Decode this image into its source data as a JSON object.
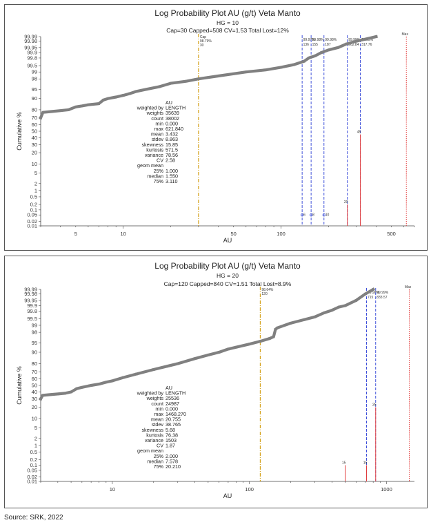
{
  "source": "Source: SRK, 2022",
  "chart_data": [
    {
      "type": "scatter",
      "title": "Log Probability Plot AU (g/t) Veta Manto",
      "subtitle1": "HG = 10",
      "subtitle2": "Cap=30 Capped=508 CV=1.53 Total Lost=12%",
      "xlabel": "AU",
      "ylabel": "Cumulative %",
      "x_scale": "log",
      "y_scale": "probability",
      "xlim": [
        3,
        700
      ],
      "x_ticks": [
        5,
        10,
        50,
        100,
        500
      ],
      "y_ticks": [
        "0.01",
        "0.02",
        "0.05",
        "0.1",
        "0.2",
        "0.5",
        "1",
        "2",
        "5",
        "10",
        "20",
        "30",
        "40",
        "50",
        "60",
        "70",
        "80",
        "90",
        "95",
        "98",
        "99",
        "99.5",
        "99.8",
        "99.9",
        "99.95",
        "99.98",
        "99.99"
      ],
      "series": [
        {
          "color": "#808080",
          "x": [
            3,
            3.1,
            3.5,
            4,
            4.5,
            5,
            5.5,
            6,
            7,
            7.5,
            8,
            9,
            10,
            11,
            12,
            14,
            17,
            20,
            25,
            30,
            40,
            50,
            60,
            80,
            100,
            120,
            140,
            150,
            155,
            165,
            180,
            200,
            230,
            260,
            300,
            340,
            400
          ],
          "y": [
            70,
            77,
            78,
            79,
            80,
            83,
            84,
            85,
            86,
            89,
            90,
            91,
            92,
            93,
            94,
            95,
            96,
            97,
            97.5,
            98,
            98.5,
            98.8,
            99,
            99.2,
            99.4,
            99.55,
            99.7,
            99.8,
            99.82,
            99.85,
            99.9,
            99.93,
            99.95,
            99.97,
            99.98,
            99.985,
            99.99
          ]
        }
      ],
      "cap_line": {
        "x": 30,
        "color": "#d4a017",
        "labels": [
          "Cap",
          "98.79%",
          "30"
        ]
      },
      "blue_lines": [
        {
          "x": 136,
          "labels": [
            "99.97%",
            "136"
          ]
        },
        {
          "x": 155,
          "labels": [
            "99.98%",
            "155"
          ]
        },
        {
          "x": 187,
          "labels": [
            "99.98%",
            "187"
          ]
        },
        {
          "x": 263,
          "labels": [
            "99.99%",
            "262.84"
          ]
        },
        {
          "x": 318,
          "labels": [
            "99.99%",
            "317.76"
          ]
        }
      ],
      "red_lines": [
        {
          "x": 263,
          "y": 0.2,
          "label": "20"
        },
        {
          "x": 318,
          "y": 45,
          "label": "45"
        },
        {
          "x": 622,
          "y": 99.99,
          "label": "Max",
          "dotted": true
        }
      ],
      "markers": [
        {
          "x": 136,
          "y": 0.05,
          "label": "6"
        },
        {
          "x": 155,
          "y": 0.05,
          "label": "8"
        },
        {
          "x": 187,
          "y": 0.05,
          "label": "10"
        }
      ],
      "stats": [
        [
          "",
          "AU"
        ],
        [
          "weighted by",
          "LENGTH"
        ],
        [
          "weights",
          "35639"
        ],
        [
          "count",
          "38002"
        ],
        [
          "min",
          "0.000"
        ],
        [
          "max",
          "621.840"
        ],
        [
          "mean",
          "3.432"
        ],
        [
          "stdev",
          "8.863"
        ],
        [
          "skewness",
          "15.85"
        ],
        [
          "kurtosis",
          "571.5"
        ],
        [
          "variance",
          "78.56"
        ],
        [
          "CV",
          "2.58"
        ],
        [
          "geom mean",
          ""
        ],
        [
          "25%",
          "1.000"
        ],
        [
          "median",
          "1.550"
        ],
        [
          "75%",
          "3.110"
        ]
      ]
    },
    {
      "type": "scatter",
      "title": "Log Probability Plot AU (g/t) Veta Manto",
      "subtitle1": "HG = 20",
      "subtitle2": "Cap=120 Capped=840 CV=1.51 Total Lost=8.9%",
      "xlabel": "AU",
      "ylabel": "Cumulative %",
      "x_scale": "log",
      "y_scale": "probability",
      "xlim": [
        3,
        1600
      ],
      "x_ticks": [
        10,
        100,
        1000
      ],
      "y_ticks": [
        "0.01",
        "0.02",
        "0.05",
        "0.1",
        "0.2",
        "0.5",
        "1",
        "2",
        "5",
        "10",
        "20",
        "30",
        "40",
        "50",
        "60",
        "70",
        "80",
        "90",
        "95",
        "98",
        "99",
        "99.5",
        "99.8",
        "99.9",
        "99.95",
        "99.98",
        "99.99"
      ],
      "series": [
        {
          "color": "#808080",
          "x": [
            3,
            3.1,
            3.5,
            4,
            4.5,
            5,
            5.5,
            6,
            7,
            8,
            9,
            10,
            12,
            15,
            20,
            25,
            30,
            40,
            50,
            60,
            70,
            80,
            100,
            120,
            140,
            150,
            155,
            160,
            200,
            250,
            300,
            350,
            400,
            450,
            500,
            600,
            700,
            800
          ],
          "y": [
            30,
            35,
            36,
            37,
            38,
            40,
            45,
            47,
            50,
            52,
            55,
            57,
            62,
            67,
            73,
            77,
            80,
            85,
            88,
            90,
            92,
            93,
            94.5,
            95.6,
            96.5,
            97,
            98.5,
            98.7,
            99.2,
            99.45,
            99.6,
            99.75,
            99.82,
            99.88,
            99.9,
            99.95,
            99.98,
            99.99
          ]
        }
      ],
      "cap_line": {
        "x": 120,
        "color": "#d4a017",
        "labels": [
          "98.64%",
          "120"
        ]
      },
      "blue_lines": [
        {
          "x": 715,
          "labels": [
            "99.98%",
            "715"
          ]
        },
        {
          "x": 834,
          "labels": [
            "99.99%",
            "833.57"
          ]
        }
      ],
      "red_lines": [
        {
          "x": 500,
          "y": 0.1,
          "label": "15"
        },
        {
          "x": 715,
          "y": 0.1,
          "label": "15"
        },
        {
          "x": 834,
          "y": 20,
          "label": "25"
        },
        {
          "x": 1468,
          "y": 99.99,
          "label": "Max",
          "dotted": true
        }
      ],
      "markers": [],
      "stats": [
        [
          "",
          "AU"
        ],
        [
          "weighted by",
          "LENGTH"
        ],
        [
          "weights",
          "25536"
        ],
        [
          "count",
          "24987"
        ],
        [
          "min",
          "0.000"
        ],
        [
          "max",
          "1468.270"
        ],
        [
          "mean",
          "20.755"
        ],
        [
          "stdev",
          "38.765"
        ],
        [
          "skewness",
          "5.68"
        ],
        [
          "kurtosis",
          "76.38"
        ],
        [
          "variance",
          "1503"
        ],
        [
          "CV",
          "1.87"
        ],
        [
          "geom mean",
          ""
        ],
        [
          "25%",
          "2.000"
        ],
        [
          "median",
          "7.578"
        ],
        [
          "75%",
          "20.210"
        ]
      ]
    }
  ]
}
